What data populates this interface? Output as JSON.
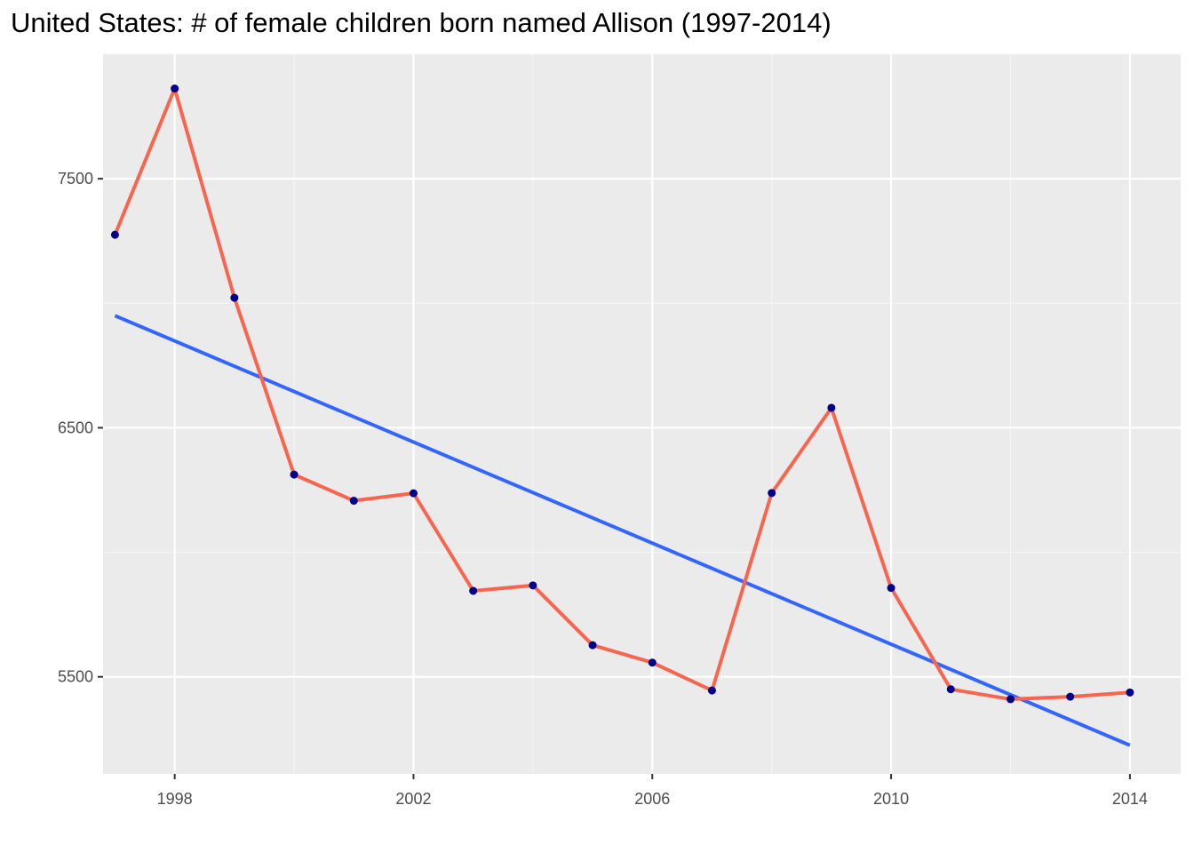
{
  "chart_data": {
    "type": "line",
    "title": "United States: # of female children born named Allison (1997-2014)",
    "xlabel": "",
    "ylabel": "",
    "x": [
      1997,
      1998,
      1999,
      2000,
      2001,
      2002,
      2003,
      2004,
      2005,
      2006,
      2007,
      2008,
      2009,
      2010,
      2011,
      2012,
      2013,
      2014
    ],
    "series": [
      {
        "values": [
          7275,
          7862,
          7022,
          6312,
          6207,
          6237,
          5845,
          5867,
          5627,
          5557,
          5445,
          6238,
          6580,
          5857,
          5450,
          5410,
          5420,
          5437
        ]
      }
    ],
    "trend": {
      "type": "linear",
      "start": [
        1997,
        6950
      ],
      "end": [
        2014,
        5225
      ]
    },
    "xlim": [
      1996.8,
      2014.85
    ],
    "ylim": [
      5110,
      8000
    ],
    "xticks": [
      1998,
      2002,
      2006,
      2010,
      2014
    ],
    "yticks": [
      5500,
      6500,
      7500
    ],
    "grid": true,
    "legend": "none",
    "colors": {
      "line": "#f8654f",
      "points": "#00008b",
      "trend": "#3366ff",
      "panel": "#ebebeb",
      "grid_major": "#ffffff",
      "grid_minor": "#f5f5f5",
      "tick_text": "#4d4d4d",
      "tick_mark": "#333333"
    }
  }
}
